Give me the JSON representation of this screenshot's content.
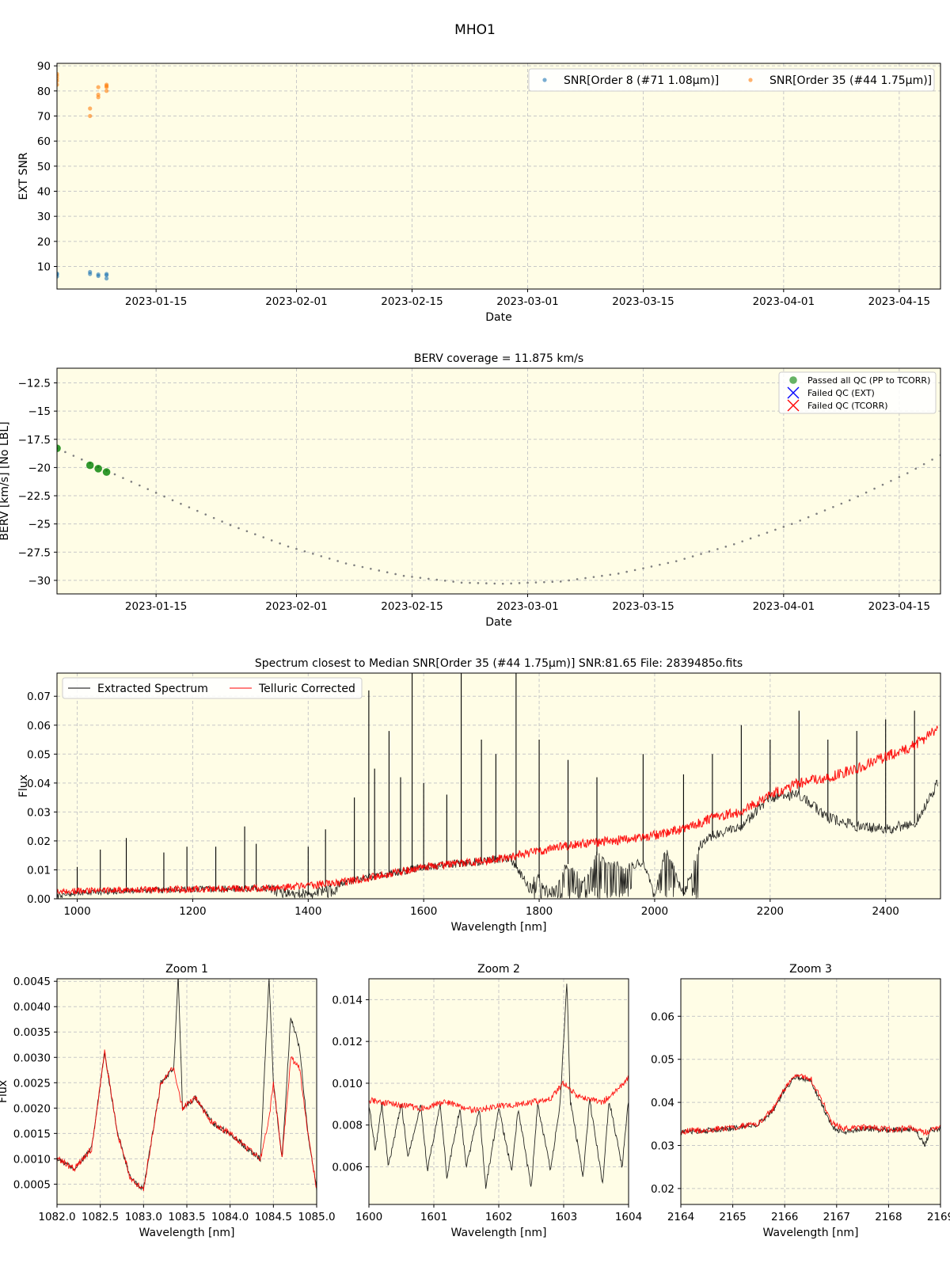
{
  "suptitle": "MHO1",
  "colors": {
    "panel_bg": "#fffde6",
    "snr_order8": "#1f77b4",
    "snr_order35": "#ff7f0e",
    "passed": "#008000",
    "failed_ext": "#0000ff",
    "failed_tcorr": "#ff0000",
    "extracted": "#000000",
    "telluric": "#ff0000",
    "berv_curve": "#808080",
    "grid": "#c8c8c8"
  },
  "chart_data": [
    {
      "id": "snr",
      "type": "scatter",
      "title": "",
      "xlabel": "Date",
      "ylabel": "EXT SNR",
      "x_is_date": true,
      "xlim": [
        "2023-01-03",
        "2023-04-20"
      ],
      "ylim": [
        1,
        91
      ],
      "xticks": [
        "2023-01-15",
        "2023-02-01",
        "2023-02-15",
        "2023-03-01",
        "2023-03-15",
        "2023-04-01",
        "2023-04-15"
      ],
      "yticks": [
        10,
        20,
        30,
        40,
        50,
        60,
        70,
        80,
        90
      ],
      "grid": true,
      "legend": "top-right",
      "series": [
        {
          "name": "SNR[Order 8 (#71 1.08μm)]",
          "color": "#1f77b4",
          "x": [
            "2023-01-03",
            "2023-01-03",
            "2023-01-03",
            "2023-01-07",
            "2023-01-07",
            "2023-01-08",
            "2023-01-08",
            "2023-01-09",
            "2023-01-09",
            "2023-01-09"
          ],
          "y": [
            6.0,
            6.8,
            7.2,
            7.0,
            7.8,
            6.2,
            6.8,
            5.2,
            6.5,
            7.0
          ]
        },
        {
          "name": "SNR[Order 35 (#44 1.75μm)]",
          "color": "#ff7f0e",
          "x": [
            "2023-01-03",
            "2023-01-03",
            "2023-01-03",
            "2023-01-03",
            "2023-01-03",
            "2023-01-07",
            "2023-01-07",
            "2023-01-08",
            "2023-01-08",
            "2023-01-08",
            "2023-01-09",
            "2023-01-09",
            "2023-01-09",
            "2023-01-09"
          ],
          "y": [
            82.5,
            84.0,
            85.0,
            86.0,
            86.8,
            70.0,
            73.0,
            77.5,
            78.5,
            81.5,
            80.0,
            81.5,
            82.0,
            82.5
          ]
        }
      ]
    },
    {
      "id": "berv",
      "type": "scatter",
      "title": "BERV coverage = 11.875 km/s",
      "xlabel": "Date",
      "ylabel": "BERV [km/s]  [No LBL]",
      "x_is_date": true,
      "xlim": [
        "2023-01-03",
        "2023-04-20"
      ],
      "ylim": [
        -31.2,
        -11.2
      ],
      "xticks": [
        "2023-01-15",
        "2023-02-01",
        "2023-02-15",
        "2023-03-01",
        "2023-03-15",
        "2023-04-01",
        "2023-04-15"
      ],
      "yticks": [
        -12.5,
        -15.0,
        -17.5,
        -20.0,
        -22.5,
        -25.0,
        -27.5,
        -30.0
      ],
      "grid": true,
      "legend": "top-right",
      "berv_curve": {
        "x": [
          "2023-01-03",
          "2023-01-10",
          "2023-01-17",
          "2023-01-24",
          "2023-01-31",
          "2023-02-07",
          "2023-02-14",
          "2023-02-21",
          "2023-02-26",
          "2023-03-05",
          "2023-03-12",
          "2023-03-19",
          "2023-03-26",
          "2023-04-02",
          "2023-04-09",
          "2023-04-16",
          "2023-04-20"
        ],
        "y": [
          -18.3,
          -20.6,
          -22.9,
          -25.1,
          -27.0,
          -28.5,
          -29.6,
          -30.2,
          -30.3,
          -30.1,
          -29.4,
          -28.3,
          -26.8,
          -25.0,
          -22.9,
          -20.5,
          -18.9
        ]
      },
      "series": [
        {
          "name": "Passed all QC (PP to TCORR)",
          "color": "#008000",
          "marker": "circle",
          "x": [
            "2023-01-03",
            "2023-01-07",
            "2023-01-08",
            "2023-01-09"
          ],
          "y": [
            -18.3,
            -19.8,
            -20.1,
            -20.4
          ]
        },
        {
          "name": "Failed QC (EXT)",
          "color": "#0000ff",
          "marker": "x",
          "x": [],
          "y": []
        },
        {
          "name": "Failed QC (TCORR)",
          "color": "#ff0000",
          "marker": "x",
          "x": [],
          "y": []
        }
      ]
    },
    {
      "id": "spectrum",
      "type": "line",
      "title": "Spectrum closest to Median SNR[Order 35 (#44 1.75μm)]     SNR:81.65     File: 2839485o.fits",
      "xlabel": "Wavelength [nm]",
      "ylabel": "Flux",
      "xlim": [
        965,
        2495
      ],
      "ylim": [
        0,
        0.078
      ],
      "xticks": [
        1000,
        1200,
        1400,
        1600,
        1800,
        2000,
        2200,
        2400
      ],
      "yticks": [
        0.0,
        0.01,
        0.02,
        0.03,
        0.04,
        0.05,
        0.06,
        0.07
      ],
      "ytick_decimals": 2,
      "grid": true,
      "legend": "top-left",
      "series": [
        {
          "name": "Extracted Spectrum",
          "color": "#000000",
          "x": [
            965,
            1000,
            1050,
            1100,
            1150,
            1200,
            1250,
            1300,
            1350,
            1380,
            1400,
            1450,
            1500,
            1550,
            1600,
            1650,
            1700,
            1750,
            1780,
            1800,
            1820,
            1850,
            1880,
            1900,
            1950,
            1980,
            2000,
            2020,
            2050,
            2080,
            2100,
            2150,
            2200,
            2250,
            2300,
            2350,
            2400,
            2450,
            2490
          ],
          "y": [
            0.001,
            0.002,
            0.0025,
            0.0028,
            0.003,
            0.0032,
            0.0033,
            0.0035,
            0.0035,
            0.001,
            0.0015,
            0.005,
            0.007,
            0.009,
            0.011,
            0.012,
            0.013,
            0.014,
            0.005,
            0.008,
            0.003,
            0.012,
            0.006,
            0.015,
            0.01,
            0.013,
            0.002,
            0.017,
            0.001,
            0.019,
            0.022,
            0.025,
            0.035,
            0.036,
            0.028,
            0.025,
            0.024,
            0.026,
            0.04
          ],
          "spikes": [
            {
              "x": 1000,
              "y": 0.011
            },
            {
              "x": 1040,
              "y": 0.017
            },
            {
              "x": 1085,
              "y": 0.021
            },
            {
              "x": 1150,
              "y": 0.016
            },
            {
              "x": 1190,
              "y": 0.018
            },
            {
              "x": 1240,
              "y": 0.018
            },
            {
              "x": 1290,
              "y": 0.025
            },
            {
              "x": 1310,
              "y": 0.019
            },
            {
              "x": 1400,
              "y": 0.018
            },
            {
              "x": 1430,
              "y": 0.024
            },
            {
              "x": 1480,
              "y": 0.035
            },
            {
              "x": 1505,
              "y": 0.072
            },
            {
              "x": 1515,
              "y": 0.045
            },
            {
              "x": 1540,
              "y": 0.058
            },
            {
              "x": 1560,
              "y": 0.042
            },
            {
              "x": 1580,
              "y": 0.078
            },
            {
              "x": 1600,
              "y": 0.04
            },
            {
              "x": 1640,
              "y": 0.036
            },
            {
              "x": 1665,
              "y": 0.078
            },
            {
              "x": 1700,
              "y": 0.055
            },
            {
              "x": 1725,
              "y": 0.05
            },
            {
              "x": 1760,
              "y": 0.078
            },
            {
              "x": 1800,
              "y": 0.055
            },
            {
              "x": 1850,
              "y": 0.048
            },
            {
              "x": 1900,
              "y": 0.042
            },
            {
              "x": 1980,
              "y": 0.05
            },
            {
              "x": 2050,
              "y": 0.043
            },
            {
              "x": 2100,
              "y": 0.05
            },
            {
              "x": 2150,
              "y": 0.06
            },
            {
              "x": 2200,
              "y": 0.055
            },
            {
              "x": 2250,
              "y": 0.065
            },
            {
              "x": 2300,
              "y": 0.055
            },
            {
              "x": 2350,
              "y": 0.058
            },
            {
              "x": 2400,
              "y": 0.062
            },
            {
              "x": 2450,
              "y": 0.065
            }
          ],
          "absorption_bands": [
            {
              "from": 1330,
              "to": 1450
            },
            {
              "from": 1780,
              "to": 1960
            },
            {
              "from": 1995,
              "to": 2035
            },
            {
              "from": 2045,
              "to": 2075
            }
          ]
        },
        {
          "name": "Telluric Corrected",
          "color": "#ff0000",
          "x": [
            965,
            1000,
            1050,
            1100,
            1150,
            1200,
            1250,
            1300,
            1350,
            1400,
            1450,
            1500,
            1550,
            1600,
            1650,
            1700,
            1750,
            1800,
            1850,
            1900,
            1950,
            2000,
            2050,
            2100,
            2150,
            2200,
            2250,
            2300,
            2350,
            2400,
            2450,
            2490
          ],
          "y": [
            0.0025,
            0.0028,
            0.003,
            0.0031,
            0.0032,
            0.0033,
            0.0034,
            0.0036,
            0.0038,
            0.0045,
            0.0055,
            0.007,
            0.009,
            0.011,
            0.012,
            0.013,
            0.0145,
            0.0165,
            0.0185,
            0.0195,
            0.0205,
            0.022,
            0.024,
            0.028,
            0.03,
            0.036,
            0.04,
            0.042,
            0.045,
            0.049,
            0.053,
            0.059
          ]
        }
      ]
    },
    {
      "id": "zoom1",
      "type": "line",
      "title": "Zoom 1",
      "xlabel": "Wavelength [nm]",
      "ylabel": "Flux",
      "xlim": [
        1082.0,
        1085.0
      ],
      "ylim": [
        0.0001,
        0.00455
      ],
      "xticks": [
        1082.0,
        1082.5,
        1083.0,
        1083.5,
        1084.0,
        1084.5,
        1085.0
      ],
      "yticks": [
        0.0005,
        0.001,
        0.0015,
        0.002,
        0.0025,
        0.003,
        0.0035,
        0.004,
        0.0045
      ],
      "ytick_decimals": 4,
      "xtick_decimals": 1,
      "grid": true,
      "series": [
        {
          "name": "Extracted Spectrum",
          "color": "#000000",
          "x": [
            1082.0,
            1082.2,
            1082.4,
            1082.55,
            1082.7,
            1082.85,
            1083.0,
            1083.2,
            1083.35,
            1083.4,
            1083.45,
            1083.6,
            1083.8,
            1084.0,
            1084.2,
            1084.35,
            1084.45,
            1084.5,
            1084.6,
            1084.7,
            1084.8,
            1084.9,
            1085.0
          ],
          "y": [
            0.001,
            0.0008,
            0.0012,
            0.0031,
            0.0015,
            0.0006,
            0.0004,
            0.0025,
            0.0028,
            0.0046,
            0.002,
            0.0022,
            0.0017,
            0.0015,
            0.0012,
            0.001,
            0.0046,
            0.0025,
            0.001,
            0.0038,
            0.0032,
            0.0015,
            0.0004
          ]
        },
        {
          "name": "Telluric Corrected",
          "color": "#ff0000",
          "x": [
            1082.0,
            1082.2,
            1082.4,
            1082.55,
            1082.7,
            1082.85,
            1083.0,
            1083.2,
            1083.35,
            1083.4,
            1083.45,
            1083.6,
            1083.8,
            1084.0,
            1084.2,
            1084.35,
            1084.45,
            1084.5,
            1084.6,
            1084.7,
            1084.8,
            1084.9,
            1085.0
          ],
          "y": [
            0.001,
            0.0008,
            0.0012,
            0.0031,
            0.0015,
            0.0006,
            0.0004,
            0.0025,
            0.0028,
            0.0024,
            0.002,
            0.0022,
            0.0017,
            0.0015,
            0.0012,
            0.001,
            0.0018,
            0.0025,
            0.001,
            0.003,
            0.0028,
            0.0015,
            0.0004
          ]
        }
      ]
    },
    {
      "id": "zoom2",
      "type": "line",
      "title": "Zoom 2",
      "xlabel": "Wavelength [nm]",
      "ylabel": "",
      "xlim": [
        1600,
        1604
      ],
      "ylim": [
        0.0042,
        0.015
      ],
      "xticks": [
        1600,
        1601,
        1602,
        1603,
        1604
      ],
      "yticks": [
        0.006,
        0.008,
        0.01,
        0.012,
        0.014
      ],
      "ytick_decimals": 3,
      "xtick_decimals": 0,
      "grid": true,
      "series": [
        {
          "name": "Extracted Spectrum",
          "color": "#000000",
          "x": [
            1600.0,
            1600.1,
            1600.2,
            1600.3,
            1600.5,
            1600.6,
            1600.8,
            1600.9,
            1601.1,
            1601.2,
            1601.4,
            1601.5,
            1601.7,
            1601.8,
            1602.0,
            1602.2,
            1602.3,
            1602.5,
            1602.6,
            1602.8,
            1602.95,
            1603.05,
            1603.1,
            1603.3,
            1603.4,
            1603.6,
            1603.7,
            1603.9,
            1604.0
          ],
          "y": [
            0.009,
            0.0068,
            0.009,
            0.006,
            0.009,
            0.0065,
            0.009,
            0.0058,
            0.009,
            0.0055,
            0.0088,
            0.006,
            0.0088,
            0.005,
            0.0088,
            0.0058,
            0.0088,
            0.005,
            0.009,
            0.0058,
            0.0092,
            0.015,
            0.0092,
            0.0055,
            0.0092,
            0.0052,
            0.0092,
            0.006,
            0.0092
          ]
        },
        {
          "name": "Telluric Corrected",
          "color": "#ff0000",
          "x": [
            1600.0,
            1600.4,
            1600.8,
            1601.2,
            1601.6,
            1602.0,
            1602.4,
            1602.8,
            1603.0,
            1603.2,
            1603.6,
            1604.0
          ],
          "y": [
            0.0092,
            0.009,
            0.0088,
            0.0091,
            0.0087,
            0.0089,
            0.009,
            0.0093,
            0.01,
            0.0094,
            0.0091,
            0.0102
          ]
        }
      ]
    },
    {
      "id": "zoom3",
      "type": "line",
      "title": "Zoom 3",
      "xlabel": "Wavelength [nm]",
      "ylabel": "",
      "xlim": [
        2164,
        2169
      ],
      "ylim": [
        0.0163,
        0.0687
      ],
      "xticks": [
        2164,
        2165,
        2166,
        2167,
        2168,
        2169
      ],
      "yticks": [
        0.02,
        0.03,
        0.04,
        0.05,
        0.06
      ],
      "ytick_decimals": 2,
      "xtick_decimals": 0,
      "grid": true,
      "series": [
        {
          "name": "Extracted Spectrum",
          "color": "#000000",
          "x": [
            2164.0,
            2164.5,
            2165.0,
            2165.5,
            2165.8,
            2166.0,
            2166.2,
            2166.5,
            2166.7,
            2166.9,
            2167.1,
            2167.5,
            2168.0,
            2168.5,
            2168.7,
            2168.8,
            2169.0
          ],
          "y": [
            0.033,
            0.0335,
            0.034,
            0.035,
            0.0385,
            0.043,
            0.046,
            0.045,
            0.04,
            0.0345,
            0.033,
            0.034,
            0.0335,
            0.0338,
            0.03,
            0.0335,
            0.034
          ]
        },
        {
          "name": "Telluric Corrected",
          "color": "#ff0000",
          "x": [
            2164.0,
            2164.5,
            2165.0,
            2165.5,
            2165.8,
            2166.0,
            2166.2,
            2166.5,
            2166.7,
            2166.9,
            2167.1,
            2167.5,
            2168.0,
            2168.5,
            2168.7,
            2168.8,
            2169.0
          ],
          "y": [
            0.0332,
            0.0336,
            0.0342,
            0.0352,
            0.0388,
            0.0432,
            0.0462,
            0.0455,
            0.041,
            0.0355,
            0.034,
            0.0342,
            0.0337,
            0.034,
            0.033,
            0.0335,
            0.0342
          ]
        }
      ]
    }
  ]
}
